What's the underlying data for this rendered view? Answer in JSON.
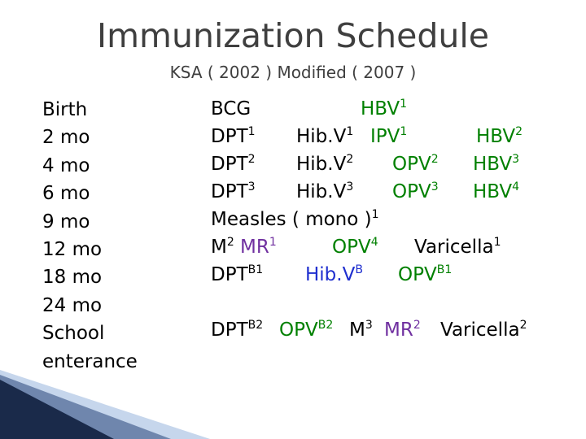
{
  "title": "Immunization Schedule",
  "subtitle": "KSA ( 2002 ) Modified ( 2007 )",
  "ages": [
    "Birth",
    "2 mo",
    "4 mo",
    "6 mo",
    "9 mo",
    "12 mo",
    "18 mo",
    "24 mo",
    "School",
    "enterance"
  ],
  "schedule": {
    "birth": {
      "bcg": "BCG",
      "hbv": {
        "name": "HBV",
        "dose": "1"
      }
    },
    "mo2": {
      "dpt": {
        "name": "DPT",
        "dose": "1"
      },
      "hib": {
        "name": "Hib.V",
        "dose": "1"
      },
      "ipv": {
        "name": "IPV",
        "dose": "1"
      },
      "hbv": {
        "name": "HBV",
        "dose": "2"
      }
    },
    "mo4": {
      "dpt": {
        "name": "DPT",
        "dose": "2"
      },
      "hib": {
        "name": "Hib.V",
        "dose": "2"
      },
      "opv": {
        "name": "OPV",
        "dose": "2"
      },
      "hbv": {
        "name": "HBV",
        "dose": "3"
      }
    },
    "mo6": {
      "dpt": {
        "name": "DPT",
        "dose": "3"
      },
      "hib": {
        "name": "Hib.V",
        "dose": "3"
      },
      "opv": {
        "name": "OPV",
        "dose": "3"
      },
      "hbv": {
        "name": "HBV",
        "dose": "4"
      }
    },
    "mo9": {
      "measles": {
        "name": "Measles ( mono )",
        "dose": "1"
      }
    },
    "mo12": {
      "m": {
        "name": "M",
        "dose": "2"
      },
      "mr": {
        "name": "MR",
        "dose": "1"
      },
      "opv": {
        "name": "OPV",
        "dose": "4"
      },
      "varicella": {
        "name": "Varicella",
        "dose": "1"
      }
    },
    "mo18": {
      "dpt": {
        "name": "DPT",
        "dose": "B1"
      },
      "hib": {
        "name": "Hib.V",
        "dose": "B"
      },
      "opv": {
        "name": "OPV",
        "dose": "B1"
      }
    },
    "school": {
      "dpt": {
        "name": "DPT",
        "dose": "B2"
      },
      "opv": {
        "name": "OPV",
        "dose": "B2"
      },
      "m": {
        "name": "M",
        "dose": "3"
      },
      "mr": {
        "name": "MR",
        "dose": "2"
      },
      "varicella": {
        "name": "Varicella",
        "dose": "2"
      }
    }
  },
  "colors": {
    "title": "#3f3f3f",
    "green": "#008000",
    "blue": "#1f2fcf",
    "purple": "#7030a0",
    "corner_dark": "#1a2a4a",
    "corner_light": "#c6d6ec"
  }
}
